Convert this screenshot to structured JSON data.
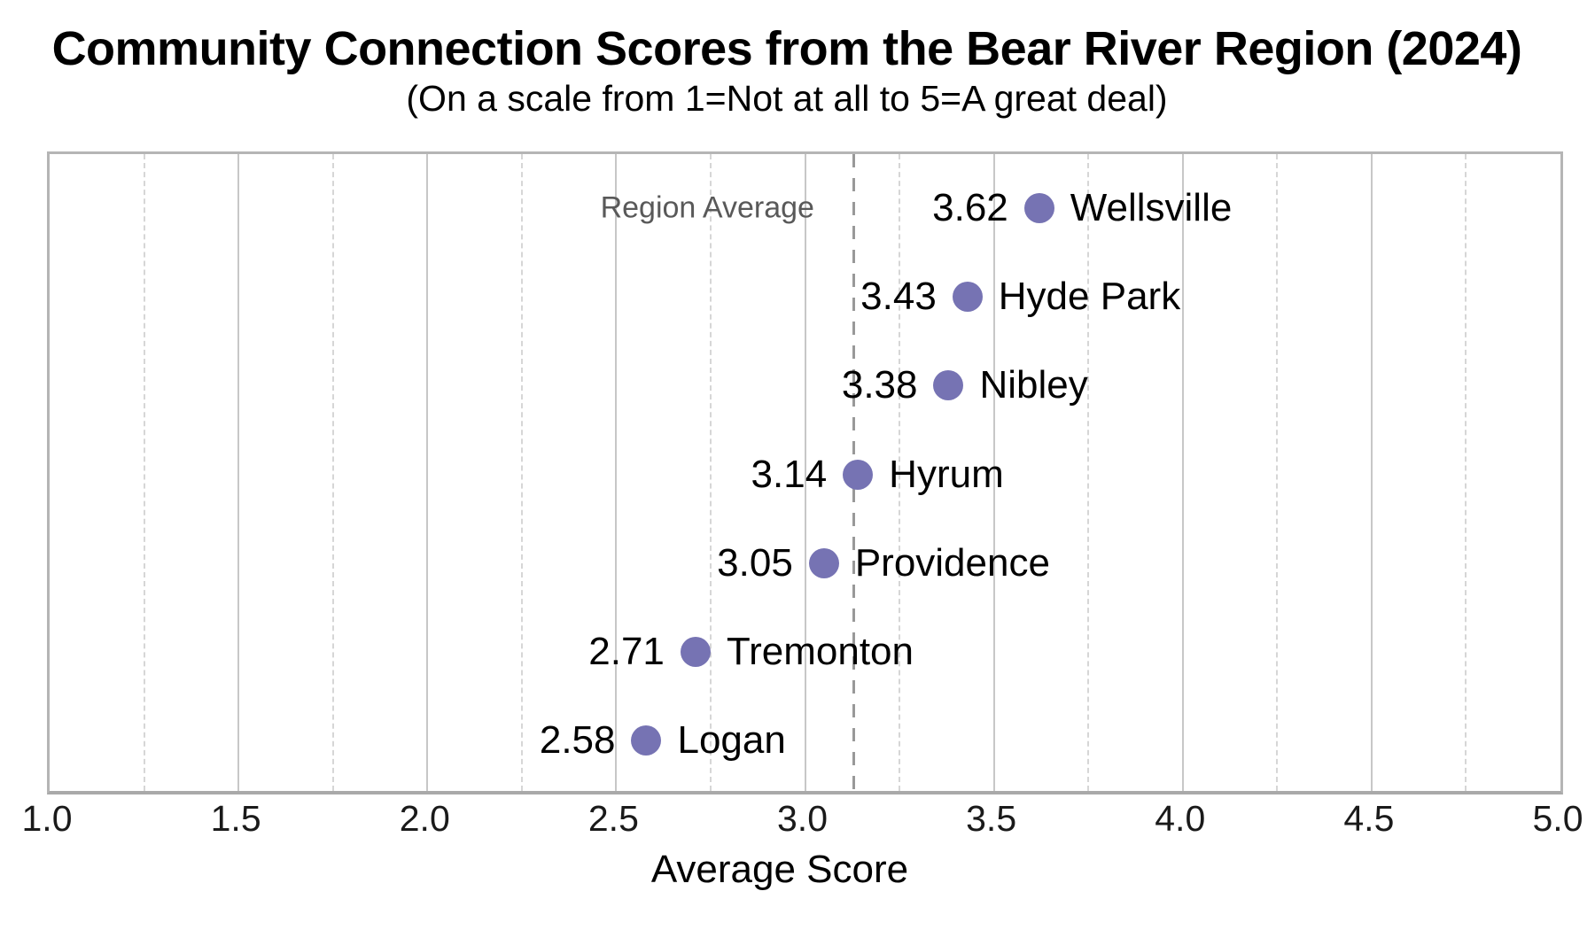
{
  "header": {
    "title": "Community Connection Scores from the Bear River Region (2024)",
    "subtitle": "(On a scale from 1=Not at all to 5=A great deal)"
  },
  "chart_data": {
    "type": "scatter",
    "variant": "horizontal-dot-plot",
    "title": "Community Connection Scores from the Bear River Region (2024)",
    "subtitle": "(On a scale from 1=Not at all to 5=A great deal)",
    "xlabel": "Average Score",
    "xlim": [
      1.0,
      5.0
    ],
    "xtick_labels": [
      "1.0",
      "1.5",
      "2.0",
      "2.5",
      "3.0",
      "3.5",
      "4.0",
      "4.5",
      "5.0"
    ],
    "gridlines_major": [
      1.5,
      2.0,
      2.5,
      3.0,
      3.5,
      4.0,
      4.5
    ],
    "gridlines_minor": [
      1.25,
      1.75,
      2.25,
      2.75,
      3.25,
      3.75,
      4.25,
      4.75
    ],
    "grid": "vertical only; solid lines at 0.5 steps, light dashed lines at 0.25 offsets",
    "legend": "none",
    "reference_line": {
      "label": "Region Average",
      "value": 3.13,
      "style": "dashed"
    },
    "categories": [
      "Wellsville",
      "Hyde Park",
      "Nibley",
      "Hyrum",
      "Providence",
      "Tremonton",
      "Logan"
    ],
    "values": [
      3.62,
      3.43,
      3.38,
      3.14,
      3.05,
      2.71,
      2.58
    ],
    "points": [
      {
        "city": "Wellsville",
        "value": 3.62,
        "value_label": "3.62"
      },
      {
        "city": "Hyde Park",
        "value": 3.43,
        "value_label": "3.43"
      },
      {
        "city": "Nibley",
        "value": 3.38,
        "value_label": "3.38"
      },
      {
        "city": "Hyrum",
        "value": 3.14,
        "value_label": "3.14"
      },
      {
        "city": "Providence",
        "value": 3.05,
        "value_label": "3.05"
      },
      {
        "city": "Tremonton",
        "value": 2.71,
        "value_label": "2.71"
      },
      {
        "city": "Logan",
        "value": 2.58,
        "value_label": "2.58"
      }
    ],
    "colors": {
      "dot": "#7673B3",
      "reference_line": "#999999",
      "reference_label": "#595959",
      "gridline_major": "#c7c7c7",
      "gridline_minor": "#d6d6d6",
      "plot_border": "#b3b3b3",
      "text": "#000000"
    }
  }
}
